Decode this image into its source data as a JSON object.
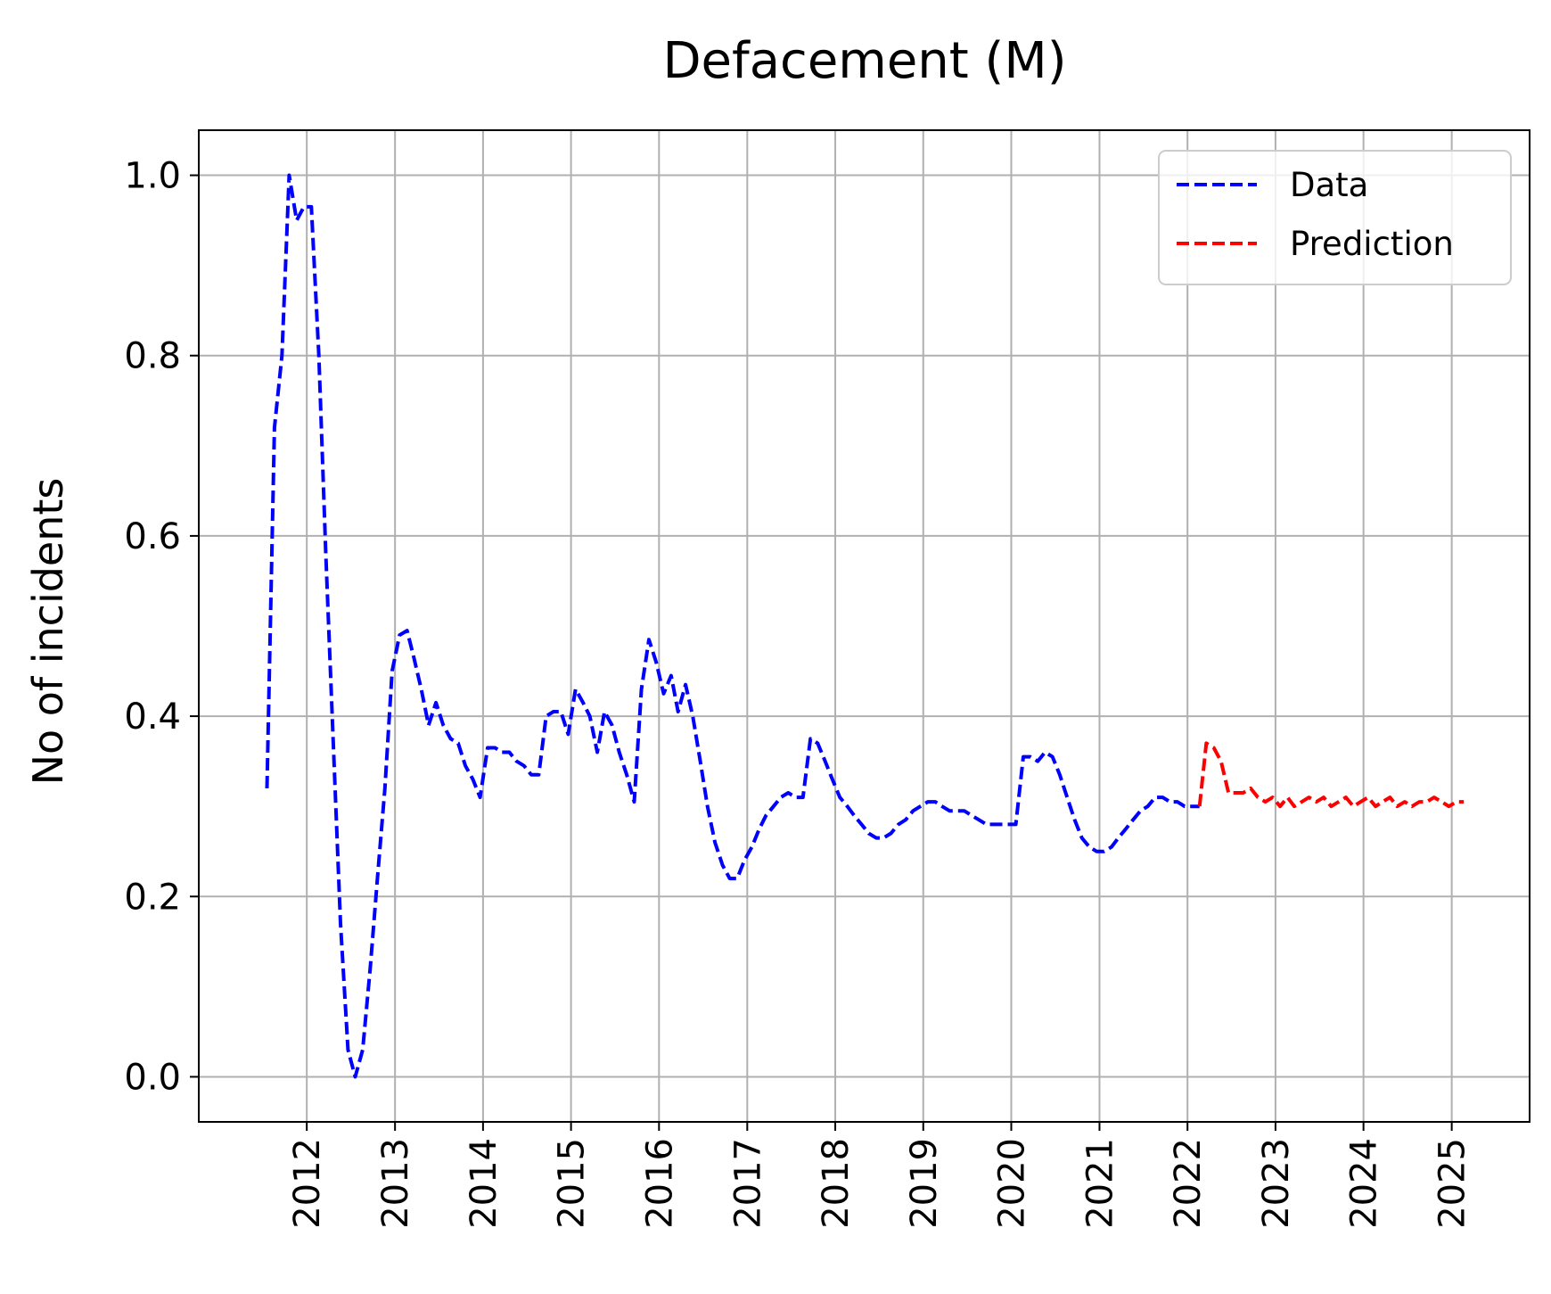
{
  "chart_data": {
    "type": "line",
    "title": "Defacement (M)",
    "xlabel": "",
    "ylabel": "No of incidents",
    "xlim": [
      "2010-10-10",
      "2025-11-20"
    ],
    "ylim": [
      -0.05,
      1.05
    ],
    "x_ticks": [
      "2012",
      "2013",
      "2014",
      "2015",
      "2016",
      "2017",
      "2018",
      "2019",
      "2020",
      "2021",
      "2022",
      "2023",
      "2024",
      "2025"
    ],
    "y_ticks": [
      "0.0",
      "0.2",
      "0.4",
      "0.6",
      "0.8",
      "1.0"
    ],
    "grid": true,
    "legend": "top-right",
    "series": [
      {
        "name": "Data",
        "color": "#0000ff",
        "style": "dashed",
        "points": [
          [
            "2011-07-20",
            0.32
          ],
          [
            "2011-08-20",
            0.72
          ],
          [
            "2011-09-20",
            0.8
          ],
          [
            "2011-10-20",
            1.0
          ],
          [
            "2011-11-20",
            0.95
          ],
          [
            "2011-12-20",
            0.965
          ],
          [
            "2012-01-20",
            0.965
          ],
          [
            "2012-02-20",
            0.8
          ],
          [
            "2012-03-20",
            0.58
          ],
          [
            "2012-04-20",
            0.37
          ],
          [
            "2012-05-20",
            0.17
          ],
          [
            "2012-06-20",
            0.03
          ],
          [
            "2012-07-20",
            0.0
          ],
          [
            "2012-08-20",
            0.03
          ],
          [
            "2012-09-20",
            0.12
          ],
          [
            "2012-10-20",
            0.22
          ],
          [
            "2012-11-20",
            0.32
          ],
          [
            "2012-12-20",
            0.45
          ],
          [
            "2013-01-20",
            0.49
          ],
          [
            "2013-02-20",
            0.495
          ],
          [
            "2013-03-20",
            0.465
          ],
          [
            "2013-04-20",
            0.43
          ],
          [
            "2013-05-20",
            0.39
          ],
          [
            "2013-06-20",
            0.415
          ],
          [
            "2013-07-20",
            0.39
          ],
          [
            "2013-08-20",
            0.375
          ],
          [
            "2013-09-20",
            0.37
          ],
          [
            "2013-10-20",
            0.345
          ],
          [
            "2013-11-20",
            0.33
          ],
          [
            "2013-12-20",
            0.31
          ],
          [
            "2014-01-20",
            0.365
          ],
          [
            "2014-02-20",
            0.365
          ],
          [
            "2014-03-20",
            0.36
          ],
          [
            "2014-04-20",
            0.36
          ],
          [
            "2014-05-20",
            0.35
          ],
          [
            "2014-06-20",
            0.345
          ],
          [
            "2014-07-20",
            0.335
          ],
          [
            "2014-08-20",
            0.335
          ],
          [
            "2014-09-20",
            0.4
          ],
          [
            "2014-10-20",
            0.405
          ],
          [
            "2014-11-20",
            0.405
          ],
          [
            "2014-12-20",
            0.38
          ],
          [
            "2015-01-20",
            0.43
          ],
          [
            "2015-02-20",
            0.415
          ],
          [
            "2015-03-20",
            0.4
          ],
          [
            "2015-04-20",
            0.36
          ],
          [
            "2015-05-20",
            0.405
          ],
          [
            "2015-06-20",
            0.39
          ],
          [
            "2015-07-20",
            0.36
          ],
          [
            "2015-08-20",
            0.335
          ],
          [
            "2015-09-20",
            0.305
          ],
          [
            "2015-10-20",
            0.43
          ],
          [
            "2015-11-20",
            0.485
          ],
          [
            "2015-12-20",
            0.46
          ],
          [
            "2016-01-20",
            0.425
          ],
          [
            "2016-02-20",
            0.445
          ],
          [
            "2016-03-20",
            0.405
          ],
          [
            "2016-04-20",
            0.435
          ],
          [
            "2016-05-20",
            0.4
          ],
          [
            "2016-06-20",
            0.35
          ],
          [
            "2016-07-20",
            0.3
          ],
          [
            "2016-08-20",
            0.26
          ],
          [
            "2016-09-20",
            0.235
          ],
          [
            "2016-10-20",
            0.22
          ],
          [
            "2016-11-20",
            0.22
          ],
          [
            "2016-12-20",
            0.24
          ],
          [
            "2017-01-20",
            0.255
          ],
          [
            "2017-02-20",
            0.275
          ],
          [
            "2017-03-20",
            0.29
          ],
          [
            "2017-04-20",
            0.3
          ],
          [
            "2017-05-20",
            0.31
          ],
          [
            "2017-06-20",
            0.315
          ],
          [
            "2017-07-20",
            0.31
          ],
          [
            "2017-08-20",
            0.31
          ],
          [
            "2017-09-20",
            0.375
          ],
          [
            "2017-10-20",
            0.37
          ],
          [
            "2017-11-20",
            0.35
          ],
          [
            "2017-12-20",
            0.33
          ],
          [
            "2018-01-20",
            0.31
          ],
          [
            "2018-02-20",
            0.3
          ],
          [
            "2018-03-20",
            0.29
          ],
          [
            "2018-04-20",
            0.28
          ],
          [
            "2018-05-20",
            0.27
          ],
          [
            "2018-06-20",
            0.265
          ],
          [
            "2018-07-20",
            0.265
          ],
          [
            "2018-08-20",
            0.27
          ],
          [
            "2018-09-20",
            0.28
          ],
          [
            "2018-10-20",
            0.285
          ],
          [
            "2018-11-20",
            0.295
          ],
          [
            "2018-12-20",
            0.3
          ],
          [
            "2019-01-20",
            0.305
          ],
          [
            "2019-02-20",
            0.305
          ],
          [
            "2019-03-20",
            0.3
          ],
          [
            "2019-04-20",
            0.295
          ],
          [
            "2019-05-20",
            0.295
          ],
          [
            "2019-06-20",
            0.295
          ],
          [
            "2019-07-20",
            0.29
          ],
          [
            "2019-08-20",
            0.285
          ],
          [
            "2019-09-20",
            0.28
          ],
          [
            "2019-10-20",
            0.28
          ],
          [
            "2019-11-20",
            0.28
          ],
          [
            "2019-12-20",
            0.28
          ],
          [
            "2020-01-20",
            0.28
          ],
          [
            "2020-02-20",
            0.355
          ],
          [
            "2020-03-20",
            0.355
          ],
          [
            "2020-04-20",
            0.35
          ],
          [
            "2020-05-20",
            0.36
          ],
          [
            "2020-06-20",
            0.355
          ],
          [
            "2020-07-20",
            0.335
          ],
          [
            "2020-08-20",
            0.31
          ],
          [
            "2020-09-20",
            0.285
          ],
          [
            "2020-10-20",
            0.265
          ],
          [
            "2020-11-20",
            0.255
          ],
          [
            "2020-12-20",
            0.25
          ],
          [
            "2021-01-20",
            0.25
          ],
          [
            "2021-02-20",
            0.255
          ],
          [
            "2021-03-20",
            0.265
          ],
          [
            "2021-04-20",
            0.275
          ],
          [
            "2021-05-20",
            0.285
          ],
          [
            "2021-06-20",
            0.295
          ],
          [
            "2021-07-20",
            0.3
          ],
          [
            "2021-08-20",
            0.31
          ],
          [
            "2021-09-20",
            0.31
          ],
          [
            "2021-10-20",
            0.305
          ],
          [
            "2021-11-20",
            0.305
          ],
          [
            "2021-12-20",
            0.3
          ],
          [
            "2022-01-20",
            0.3
          ],
          [
            "2022-02-20",
            0.3
          ]
        ]
      },
      {
        "name": "Prediction",
        "color": "#ff0000",
        "style": "dashed",
        "points": [
          [
            "2022-02-20",
            0.3
          ],
          [
            "2022-03-20",
            0.37
          ],
          [
            "2022-04-20",
            0.365
          ],
          [
            "2022-05-20",
            0.35
          ],
          [
            "2022-06-20",
            0.315
          ],
          [
            "2022-07-20",
            0.315
          ],
          [
            "2022-08-20",
            0.315
          ],
          [
            "2022-09-20",
            0.32
          ],
          [
            "2022-10-20",
            0.31
          ],
          [
            "2022-11-20",
            0.305
          ],
          [
            "2022-12-20",
            0.31
          ],
          [
            "2023-01-20",
            0.3
          ],
          [
            "2023-02-20",
            0.31
          ],
          [
            "2023-03-20",
            0.3
          ],
          [
            "2023-04-20",
            0.305
          ],
          [
            "2023-05-20",
            0.31
          ],
          [
            "2023-06-20",
            0.305
          ],
          [
            "2023-07-20",
            0.31
          ],
          [
            "2023-08-20",
            0.3
          ],
          [
            "2023-09-20",
            0.305
          ],
          [
            "2023-10-20",
            0.31
          ],
          [
            "2023-11-20",
            0.3
          ],
          [
            "2023-12-20",
            0.305
          ],
          [
            "2024-01-20",
            0.31
          ],
          [
            "2024-02-20",
            0.3
          ],
          [
            "2024-03-20",
            0.305
          ],
          [
            "2024-04-20",
            0.31
          ],
          [
            "2024-05-20",
            0.3
          ],
          [
            "2024-06-20",
            0.305
          ],
          [
            "2024-07-20",
            0.3
          ],
          [
            "2024-08-20",
            0.305
          ],
          [
            "2024-09-20",
            0.305
          ],
          [
            "2024-10-20",
            0.31
          ],
          [
            "2024-11-20",
            0.305
          ],
          [
            "2024-12-20",
            0.3
          ],
          [
            "2025-01-20",
            0.305
          ],
          [
            "2025-02-20",
            0.305
          ]
        ]
      }
    ]
  }
}
